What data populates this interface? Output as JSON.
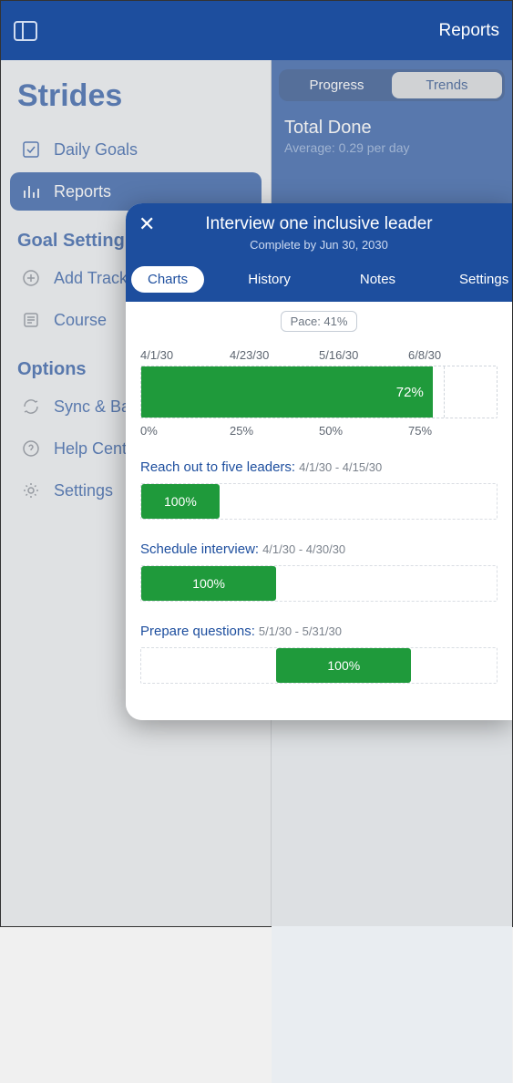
{
  "header": {
    "right_label": "Reports"
  },
  "sidebar": {
    "app_title": "Strides",
    "items_top": [
      {
        "label": "Daily Goals",
        "icon": "check-square"
      },
      {
        "label": "Reports",
        "icon": "bars",
        "active": true
      }
    ],
    "section_goal": "Goal Setting",
    "items_goal": [
      {
        "label": "Add Tracker",
        "icon": "plus-circle"
      },
      {
        "label": "Course",
        "icon": "list-doc"
      }
    ],
    "section_options": "Options",
    "items_options": [
      {
        "label": "Sync & Backup",
        "icon": "sync"
      },
      {
        "label": "Help Center",
        "icon": "help"
      },
      {
        "label": "Settings",
        "icon": "gear"
      }
    ]
  },
  "right_pane": {
    "tabs": [
      "Progress",
      "Trends"
    ],
    "active_tab": "Trends",
    "summary_title": "Total Done",
    "summary_sub": "Average: 0.29 per day"
  },
  "modal": {
    "title": "Interview one inclusive leader",
    "subtitle": "Complete by Jun 30, 2030",
    "tabs": [
      "Charts",
      "History",
      "Notes",
      "Settings"
    ],
    "active_tab": "Charts",
    "pace_label": "Pace: 41%",
    "main_chart": {
      "top_ticks": [
        "4/1/30",
        "4/23/30",
        "5/16/30",
        "6/8/30"
      ],
      "bottom_ticks": [
        "0%",
        "25%",
        "50%",
        "75%"
      ],
      "tick_positions_pct": [
        0,
        28,
        57,
        85
      ],
      "fill_pct": 82,
      "fill_label": "72%",
      "bar_color": "#1f9a3b"
    },
    "goals": [
      {
        "label": "Reach out to five leaders:",
        "range": "4/1/30 - 4/15/30",
        "left_pct": 0,
        "width_pct": 22,
        "fill_label": "100%"
      },
      {
        "label": "Schedule interview:",
        "range": "4/1/30 - 4/30/30",
        "left_pct": 0,
        "width_pct": 38,
        "fill_label": "100%"
      },
      {
        "label": "Prepare questions:",
        "range": "5/1/30 - 5/31/30",
        "left_pct": 38,
        "width_pct": 38,
        "fill_label": "100%"
      }
    ],
    "colors": {
      "header_bg": "#1d4e9e",
      "bar_fill": "#1f9a3b",
      "track_border": "#d9dde3",
      "text_muted": "#7b828c"
    }
  }
}
